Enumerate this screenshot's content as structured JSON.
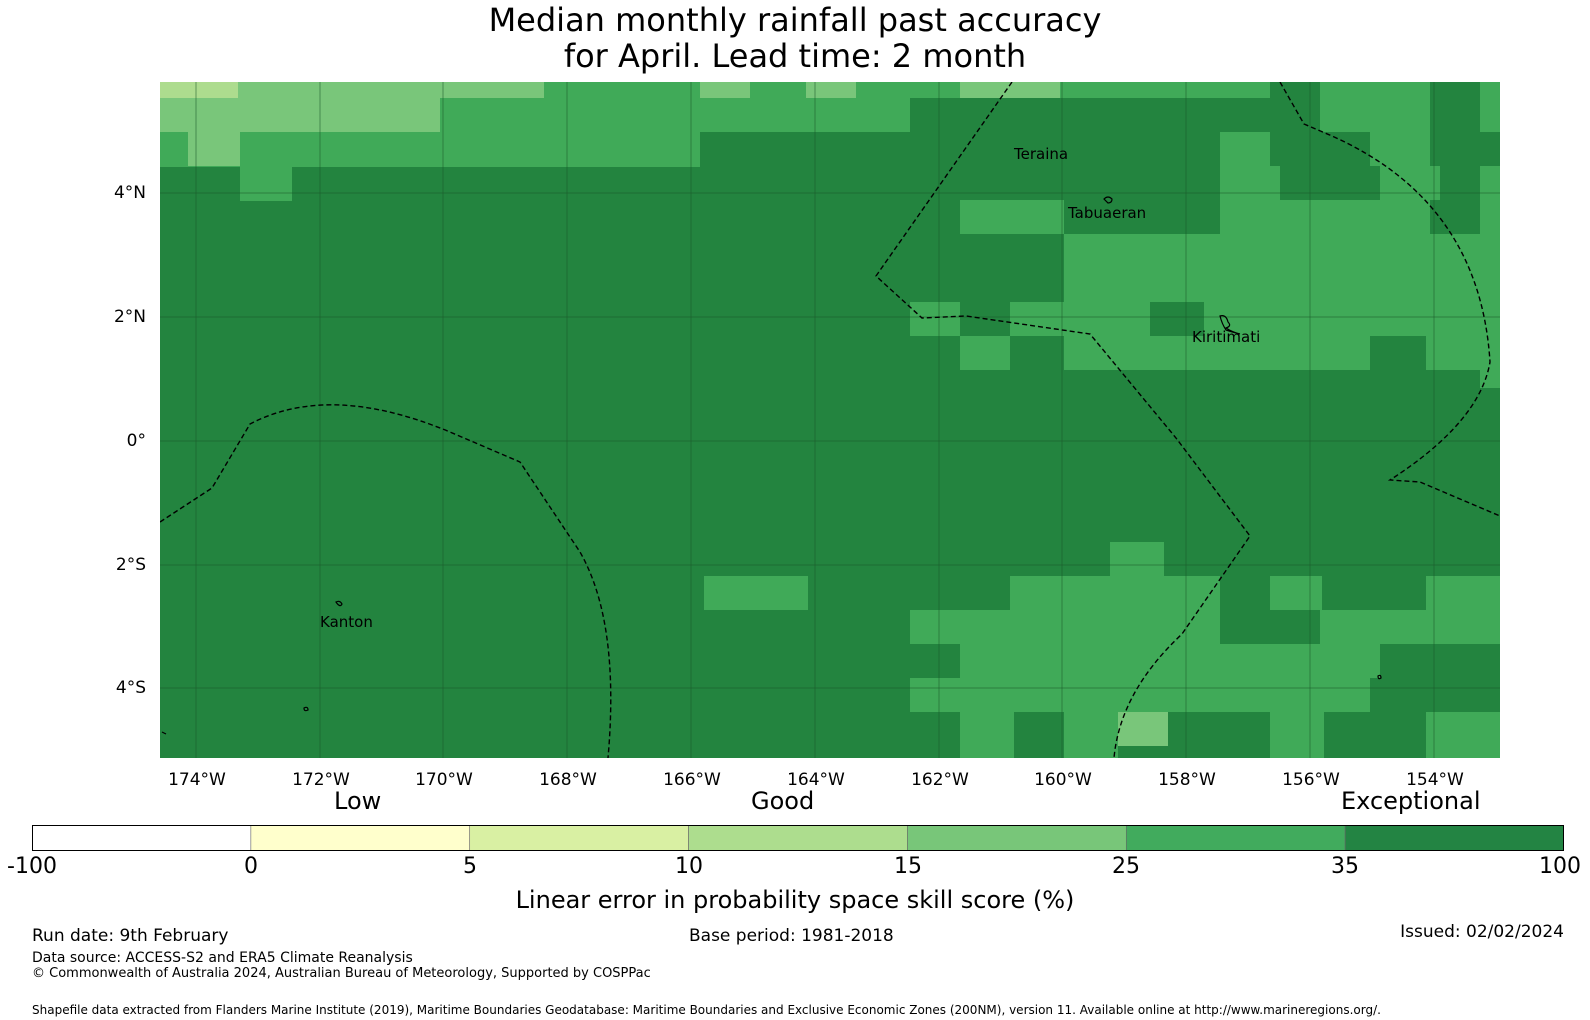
{
  "title": {
    "line1": "Median monthly rainfall past accuracy",
    "line2": "for April. Lead time: 2 month"
  },
  "map": {
    "lon_ticks": [
      "174°W",
      "172°W",
      "170°W",
      "168°W",
      "166°W",
      "164°W",
      "162°W",
      "160°W",
      "158°W",
      "156°W",
      "154°W"
    ],
    "lat_ticks": [
      "4°N",
      "2°N",
      "0°",
      "2°S",
      "4°S"
    ],
    "places": [
      "Teraina",
      "Tabuaeran",
      "Kiritimati",
      "Kanton"
    ],
    "colors": {
      "exceptional": "#23843f",
      "band_25_35": "#40aa58",
      "band_15_25": "#79c67a",
      "band_10_15": "#addc8e"
    },
    "boundary_style": "dashed black lines",
    "grid": "on"
  },
  "legend": {
    "categories": [
      "Low",
      "Good",
      "Exceptional"
    ],
    "bins": [
      {
        "from": "-100",
        "to": "0",
        "color": "#ffffff"
      },
      {
        "from": "0",
        "to": "5",
        "color": "#ffffcc"
      },
      {
        "from": "5",
        "to": "10",
        "color": "#d9f0a3"
      },
      {
        "from": "10",
        "to": "15",
        "color": "#addd8e"
      },
      {
        "from": "15",
        "to": "25",
        "color": "#78c679"
      },
      {
        "from": "25",
        "to": "35",
        "color": "#41ab5d"
      },
      {
        "from": "35",
        "to": "100",
        "color": "#238443"
      }
    ],
    "tick_labels": [
      "-100",
      "0",
      "5",
      "10",
      "15",
      "25",
      "35",
      "100"
    ],
    "axis_label": "Linear error in probability space skill score (%)"
  },
  "footer": {
    "run_date": "Run date: 9th February",
    "base_period": "Base period: 1981-2018",
    "issued": "Issued: 02/02/2024",
    "data_source": "Data source: ACCESS-S2 and ERA5 Climate Reanalysis",
    "copyright": "© Commonwealth of Australia 2024, Australian Bureau of Meteorology, Supported by COSPPac",
    "shapefile": "Shapefile data extracted from Flanders Marine Institute (2019), Maritime Boundaries Geodatabase: Maritime Boundaries and Exclusive Economic Zones (200NM), version 11. Available online at http://www.marineregions.org/."
  }
}
